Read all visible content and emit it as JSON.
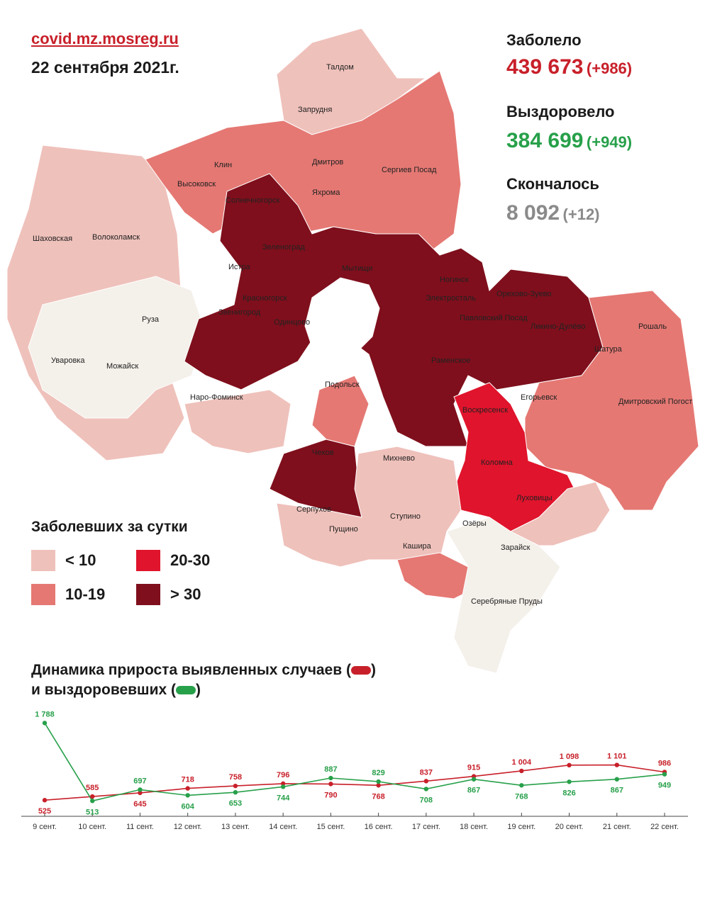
{
  "header": {
    "site": "covid.mz.mosreg.ru",
    "date": "22 сентября 2021г."
  },
  "stats": {
    "sick_label": "Заболело",
    "sick_total": "439 673",
    "sick_delta": "(+986)",
    "recovered_label": "Выздоровело",
    "recovered_total": "384 699",
    "recovered_delta": "(+949)",
    "died_label": "Скончалось",
    "died_total": "8 092",
    "died_delta": "(+12)"
  },
  "colors": {
    "sick": "#c8202a",
    "recovered": "#27a04a",
    "died": "#8a8a8a",
    "lt10": "#efc1bb",
    "r10_19": "#e57873",
    "r20_30": "#e0142c",
    "gt30": "#7f0f1c",
    "no_data": "#f4f0ea"
  },
  "map": {
    "places": [
      "Талдом",
      "Запрудня",
      "Клин",
      "Дмитров",
      "Сергиев Посад",
      "Высоковск",
      "Яхрома",
      "Солнечногорск",
      "Шаховская",
      "Волоколамск",
      "Зеленоград",
      "Мытищи",
      "Истра",
      "Ногинск",
      "Электросталь",
      "Орехово-Зуево",
      "Красногорск",
      "Павловский Посад",
      "Ликино-Дулёво",
      "Рошаль",
      "Звенигород",
      "Одинцово",
      "Руза",
      "Шатура",
      "Уваровка",
      "Можайск",
      "Раменское",
      "Наро-Фоминск",
      "Подольск",
      "Егорьевск",
      "Дмитровский Погост",
      "Воскресенск",
      "Чехов",
      "Михнево",
      "Коломна",
      "Серпухов",
      "Пущино",
      "Ступино",
      "Луховицы",
      "Озёры",
      "Кашира",
      "Зарайск",
      "Серебряные Пруды"
    ]
  },
  "legend": {
    "title": "Заболевших за сутки",
    "items": [
      "< 10",
      "10-19",
      "20-30",
      "> 30"
    ]
  },
  "dynamics": {
    "title_line1": "Динамика прироста выявленных случаев (",
    "title_line2": "и выздоровевших (",
    "close_paren": ")"
  },
  "chart_data": {
    "type": "line",
    "categories": [
      "9 сент.",
      "10 сент.",
      "11 сент.",
      "12 сент.",
      "13 сент.",
      "14 сент.",
      "15 сент.",
      "16 сент.",
      "17 сент.",
      "18 сент.",
      "19 сент.",
      "20 сент.",
      "21 сент.",
      "22 сент."
    ],
    "series": [
      {
        "color": "#c8202a",
        "values": [
          525,
          585,
          645,
          718,
          758,
          796,
          790,
          768,
          837,
          915,
          1004,
          1098,
          1101,
          986
        ],
        "labels": [
          "525",
          "585",
          "645",
          "718",
          "758",
          "796",
          "790",
          "768",
          "837",
          "915",
          "1 004",
          "1 098",
          "1 101",
          "986"
        ]
      },
      {
        "color": "#27a04a",
        "values": [
          1788,
          513,
          697,
          604,
          653,
          744,
          887,
          829,
          708,
          867,
          768,
          826,
          867,
          949
        ],
        "labels": [
          "1 788",
          "513",
          "697",
          "604",
          "653",
          "744",
          "887",
          "829",
          "708",
          "867",
          "768",
          "826",
          "867",
          "949"
        ]
      }
    ],
    "ylim": [
      0,
      2000
    ]
  }
}
